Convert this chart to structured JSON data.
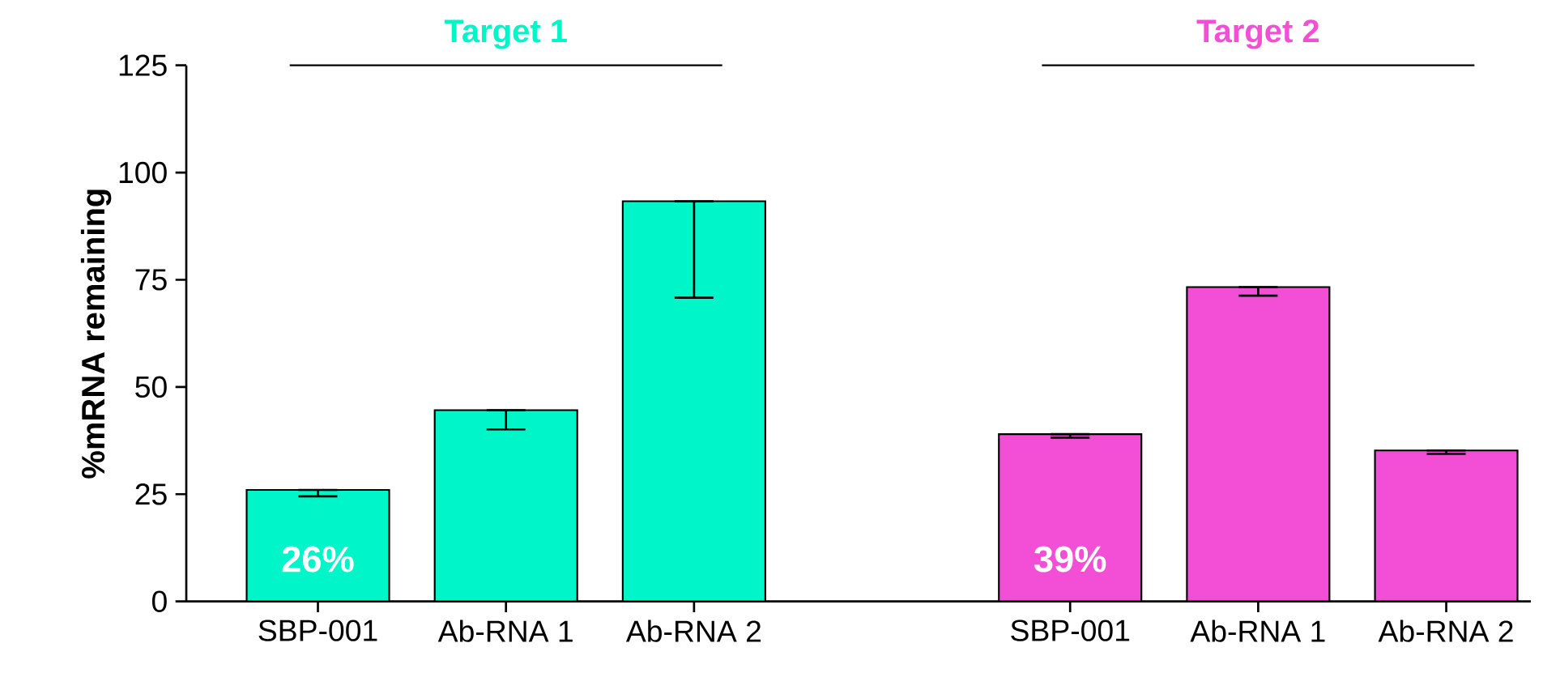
{
  "chart_data": {
    "type": "bar",
    "ylabel": "%mRNA remaining",
    "categories": [
      "SBP-001",
      "Ab-RNA 1",
      "Ab-RNA 2",
      null,
      "SBP-001",
      "Ab-RNA 1",
      "Ab-RNA 2"
    ],
    "series": [
      {
        "name": "Target 1",
        "color": "#00f5c8",
        "values": [
          26,
          44.6,
          93.3,
          null,
          null,
          null,
          null
        ],
        "errors": [
          [
            24.5,
            26
          ],
          [
            40.1,
            44.6
          ],
          [
            70.8,
            93.3
          ],
          null,
          null,
          null,
          null
        ],
        "value_labels": [
          "26%",
          null,
          null,
          null,
          null,
          null,
          null
        ]
      },
      {
        "name": "Target 2",
        "color": "#f24fd6",
        "values": [
          null,
          null,
          null,
          null,
          39,
          73.3,
          35.2
        ],
        "errors": [
          null,
          null,
          null,
          null,
          [
            38.2,
            39
          ],
          [
            71.3,
            73.3
          ],
          [
            34.4,
            35.2
          ]
        ],
        "value_labels": [
          null,
          null,
          null,
          null,
          "39%",
          null,
          null
        ]
      }
    ],
    "ylim": [
      0,
      125
    ],
    "yticks": [
      0,
      25,
      50,
      75,
      100,
      125
    ]
  }
}
